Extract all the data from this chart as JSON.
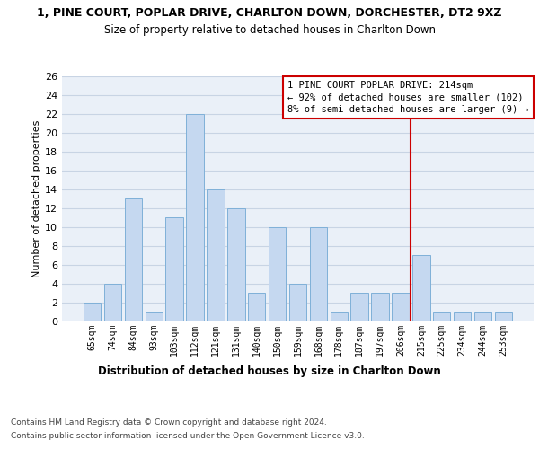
{
  "title1": "1, PINE COURT, POPLAR DRIVE, CHARLTON DOWN, DORCHESTER, DT2 9XZ",
  "title2": "Size of property relative to detached houses in Charlton Down",
  "xlabel": "Distribution of detached houses by size in Charlton Down",
  "ylabel": "Number of detached properties",
  "categories": [
    "65sqm",
    "74sqm",
    "84sqm",
    "93sqm",
    "103sqm",
    "112sqm",
    "121sqm",
    "131sqm",
    "140sqm",
    "150sqm",
    "159sqm",
    "168sqm",
    "178sqm",
    "187sqm",
    "197sqm",
    "206sqm",
    "215sqm",
    "225sqm",
    "234sqm",
    "244sqm",
    "253sqm"
  ],
  "values": [
    2,
    4,
    13,
    1,
    11,
    22,
    14,
    12,
    3,
    10,
    4,
    10,
    1,
    3,
    3,
    3,
    7,
    1,
    1,
    1,
    1
  ],
  "bar_color": "#c5d8f0",
  "bar_edge_color": "#7fb0d8",
  "bar_linewidth": 0.7,
  "grid_color": "#c8d4e4",
  "bg_color": "#eaf0f8",
  "vline_color": "#cc0000",
  "vline_linewidth": 1.5,
  "annotation_text": "1 PINE COURT POPLAR DRIVE: 214sqm\n← 92% of detached houses are smaller (102)\n8% of semi-detached houses are larger (9) →",
  "annotation_box_color": "#cc0000",
  "footnote1": "Contains HM Land Registry data © Crown copyright and database right 2024.",
  "footnote2": "Contains public sector information licensed under the Open Government Licence v3.0.",
  "ylim": [
    0,
    26
  ],
  "yticks": [
    0,
    2,
    4,
    6,
    8,
    10,
    12,
    14,
    16,
    18,
    20,
    22,
    24,
    26
  ]
}
